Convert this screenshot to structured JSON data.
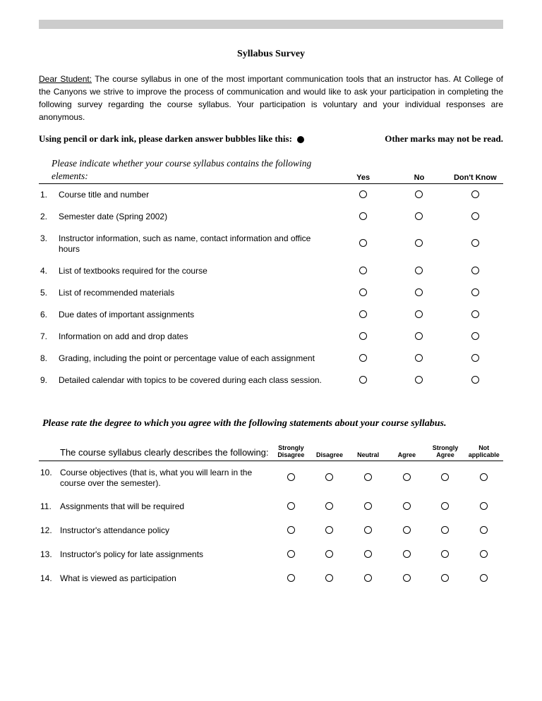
{
  "colors": {
    "header_bar": "#cccccc",
    "text": "#000000",
    "bg": "#ffffff",
    "rule": "#000000"
  },
  "title": "Syllabus Survey",
  "intro": {
    "dear": "Dear Student:",
    "body": "  The course syllabus in one of the most important communication tools that an instructor has.  At College of the Canyons we strive to improve the process of communication and would like to ask your participation in completing the following survey regarding the course syllabus.  Your participation is voluntary and your individual responses are anonymous."
  },
  "instruction": {
    "left": "Using pencil or dark ink, please darken answer bubbles like this:",
    "right": "Other marks may not be read."
  },
  "section1": {
    "prompt": "Please indicate whether your course syllabus contains the following elements:",
    "headers": [
      "Yes",
      "No",
      "Don't Know"
    ],
    "items": [
      {
        "n": "1.",
        "t": "Course title and number"
      },
      {
        "n": "2.",
        "t": "Semester date (Spring 2002)"
      },
      {
        "n": "3.",
        "t": "Instructor information, such as name, contact information and office hours"
      },
      {
        "n": "4.",
        "t": "List of textbooks required for the course"
      },
      {
        "n": "5.",
        "t": "List of recommended materials"
      },
      {
        "n": "6.",
        "t": "Due dates of important assignments"
      },
      {
        "n": "7.",
        "t": "Information on add and drop dates"
      },
      {
        "n": "8.",
        "t": "Grading, including the point or percentage value of each assignment"
      },
      {
        "n": "9.",
        "t": "Detailed calendar with topics to be covered during each class session."
      }
    ]
  },
  "section2": {
    "prompt": "Please rate the degree to which you agree with the following statements about your course syllabus.",
    "subprompt": "The course syllabus clearly describes the following:",
    "headers": [
      "Strongly Disagree",
      "Disagree",
      "Neutral",
      "Agree",
      "Strongly Agree",
      "Not applicable"
    ],
    "items": [
      {
        "n": "10.",
        "t": "Course objectives (that is, what you will learn in the course over the semester)."
      },
      {
        "n": "11.",
        "t": "Assignments that will be required"
      },
      {
        "n": "12.",
        "t": "Instructor's attendance policy"
      },
      {
        "n": "13.",
        "t": "Instructor's policy for late assignments"
      },
      {
        "n": "14.",
        "t": "What is viewed as participation"
      }
    ]
  }
}
